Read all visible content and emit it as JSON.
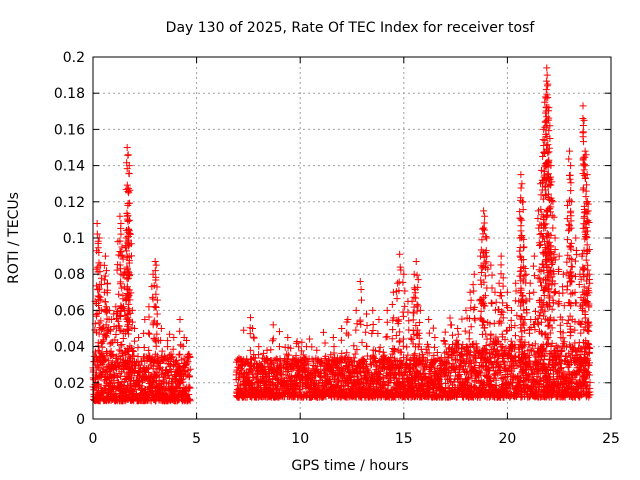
{
  "chart_data": {
    "type": "scatter",
    "title": "Day 130 of 2025, Rate Of TEC Index for receiver tosf",
    "xlabel": "GPS time / hours",
    "ylabel": "ROTI / TECUs",
    "xlim": [
      0,
      25
    ],
    "ylim": [
      0,
      0.2
    ],
    "xticks": [
      "0",
      "5",
      "10",
      "15",
      "20",
      "25"
    ],
    "yticks": [
      "0",
      "0.02",
      "0.04",
      "0.06",
      "0.08",
      "0.1",
      "0.12",
      "0.14",
      "0.16",
      "0.18",
      "0.2"
    ],
    "grid": true,
    "marker": "+",
    "color": "#ff0000",
    "data_gap_hours": [
      4.7,
      6.9
    ],
    "series": [
      {
        "points": [
          [
            0.1,
            0.065
          ],
          [
            0.2,
            0.108
          ],
          [
            0.25,
            0.097
          ],
          [
            0.3,
            0.1
          ],
          [
            0.35,
            0.085
          ],
          [
            0.4,
            0.06
          ],
          [
            0.45,
            0.05
          ],
          [
            0.55,
            0.07
          ],
          [
            0.6,
            0.09
          ],
          [
            0.65,
            0.082
          ],
          [
            0.7,
            0.075
          ],
          [
            0.8,
            0.06
          ],
          [
            0.9,
            0.055
          ],
          [
            1.0,
            0.058
          ],
          [
            1.1,
            0.062
          ],
          [
            1.2,
            0.098
          ],
          [
            1.3,
            0.112
          ],
          [
            1.35,
            0.108
          ],
          [
            1.4,
            0.095
          ],
          [
            1.5,
            0.08
          ],
          [
            1.6,
            0.1
          ],
          [
            1.65,
            0.15
          ],
          [
            1.7,
            0.146
          ],
          [
            1.75,
            0.14
          ],
          [
            1.72,
            0.125
          ],
          [
            1.68,
            0.118
          ],
          [
            1.8,
            0.102
          ],
          [
            1.9,
            0.06
          ],
          [
            2.0,
            0.05
          ],
          [
            2.2,
            0.045
          ],
          [
            2.5,
            0.055
          ],
          [
            2.7,
            0.062
          ],
          [
            2.9,
            0.08
          ],
          [
            3.0,
            0.087
          ],
          [
            3.05,
            0.085
          ],
          [
            3.1,
            0.058
          ],
          [
            3.3,
            0.05
          ],
          [
            3.6,
            0.04
          ],
          [
            3.9,
            0.045
          ],
          [
            4.2,
            0.055
          ],
          [
            4.4,
            0.045
          ],
          [
            7.6,
            0.056
          ],
          [
            7.7,
            0.05
          ],
          [
            8.0,
            0.04
          ],
          [
            8.4,
            0.038
          ],
          [
            8.7,
            0.052
          ],
          [
            9.0,
            0.04
          ],
          [
            9.4,
            0.045
          ],
          [
            9.8,
            0.035
          ],
          [
            10.3,
            0.04
          ],
          [
            10.8,
            0.038
          ],
          [
            11.2,
            0.042
          ],
          [
            11.6,
            0.045
          ],
          [
            12.0,
            0.05
          ],
          [
            12.3,
            0.055
          ],
          [
            12.7,
            0.06
          ],
          [
            12.9,
            0.076
          ],
          [
            13.2,
            0.058
          ],
          [
            13.5,
            0.06
          ],
          [
            13.8,
            0.055
          ],
          [
            14.2,
            0.06
          ],
          [
            14.5,
            0.07
          ],
          [
            14.7,
            0.075
          ],
          [
            14.8,
            0.091
          ],
          [
            15.0,
            0.08
          ],
          [
            15.2,
            0.065
          ],
          [
            15.4,
            0.065
          ],
          [
            15.5,
            0.08
          ],
          [
            15.6,
            0.087
          ],
          [
            15.7,
            0.077
          ],
          [
            15.8,
            0.06
          ],
          [
            16.2,
            0.055
          ],
          [
            16.5,
            0.045
          ],
          [
            17.0,
            0.048
          ],
          [
            17.3,
            0.052
          ],
          [
            17.6,
            0.05
          ],
          [
            18.0,
            0.06
          ],
          [
            18.2,
            0.07
          ],
          [
            18.4,
            0.08
          ],
          [
            18.7,
            0.09
          ],
          [
            18.8,
            0.105
          ],
          [
            18.85,
            0.115
          ],
          [
            18.9,
            0.112
          ],
          [
            19.0,
            0.1
          ],
          [
            19.2,
            0.085
          ],
          [
            19.4,
            0.07
          ],
          [
            19.6,
            0.075
          ],
          [
            19.7,
            0.09
          ],
          [
            19.8,
            0.078
          ],
          [
            20.0,
            0.07
          ],
          [
            20.2,
            0.06
          ],
          [
            20.4,
            0.075
          ],
          [
            20.6,
            0.1
          ],
          [
            20.65,
            0.135
          ],
          [
            20.7,
            0.13
          ],
          [
            20.75,
            0.12
          ],
          [
            20.8,
            0.095
          ],
          [
            20.9,
            0.08
          ],
          [
            21.1,
            0.075
          ],
          [
            21.3,
            0.09
          ],
          [
            21.5,
            0.115
          ],
          [
            21.6,
            0.13
          ],
          [
            21.7,
            0.145
          ],
          [
            21.75,
            0.16
          ],
          [
            21.8,
            0.175
          ],
          [
            21.85,
            0.178
          ],
          [
            21.9,
            0.194
          ],
          [
            21.92,
            0.19
          ],
          [
            21.95,
            0.185
          ],
          [
            22.0,
            0.172
          ],
          [
            22.05,
            0.155
          ],
          [
            22.1,
            0.14
          ],
          [
            22.2,
            0.12
          ],
          [
            22.3,
            0.1
          ],
          [
            22.5,
            0.09
          ],
          [
            22.7,
            0.08
          ],
          [
            22.9,
            0.118
          ],
          [
            23.0,
            0.148
          ],
          [
            23.05,
            0.14
          ],
          [
            23.1,
            0.12
          ],
          [
            23.3,
            0.1
          ],
          [
            23.5,
            0.08
          ],
          [
            23.6,
            0.09
          ],
          [
            23.65,
            0.173
          ],
          [
            23.7,
            0.165
          ],
          [
            23.75,
            0.148
          ],
          [
            23.8,
            0.146
          ],
          [
            23.85,
            0.135
          ],
          [
            23.9,
            0.115
          ],
          [
            23.95,
            0.08
          ]
        ]
      }
    ]
  }
}
